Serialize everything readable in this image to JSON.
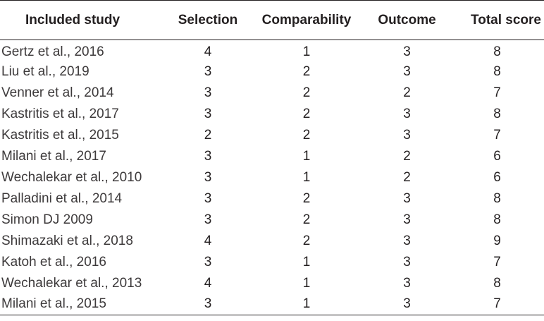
{
  "table": {
    "headers": [
      "Included study",
      "Selection",
      "Comparability",
      "Outcome",
      "Total score"
    ],
    "rows": [
      [
        "Gertz et al., 2016",
        "4",
        "1",
        "3",
        "8"
      ],
      [
        "Liu et al., 2019",
        "3",
        "2",
        "3",
        "8"
      ],
      [
        "Venner et al., 2014",
        "3",
        "2",
        "2",
        "7"
      ],
      [
        "Kastritis et al., 2017",
        "3",
        "2",
        "3",
        "8"
      ],
      [
        "Kastritis et al., 2015",
        "2",
        "2",
        "3",
        "7"
      ],
      [
        "Milani et al., 2017",
        "3",
        "1",
        "2",
        "6"
      ],
      [
        "Wechalekar et al., 2010",
        "3",
        "1",
        "2",
        "6"
      ],
      [
        "Palladini et al., 2014",
        "3",
        "2",
        "3",
        "8"
      ],
      [
        "Simon DJ 2009",
        "3",
        "2",
        "3",
        "8"
      ],
      [
        "Shimazaki et al., 2018",
        "4",
        "2",
        "3",
        "9"
      ],
      [
        "Katoh et al., 2016",
        "3",
        "1",
        "3",
        "7"
      ],
      [
        "Wechalekar et al., 2013",
        "4",
        "1",
        "3",
        "8"
      ],
      [
        "Milani et al., 2015",
        "3",
        "1",
        "3",
        "7"
      ]
    ]
  }
}
